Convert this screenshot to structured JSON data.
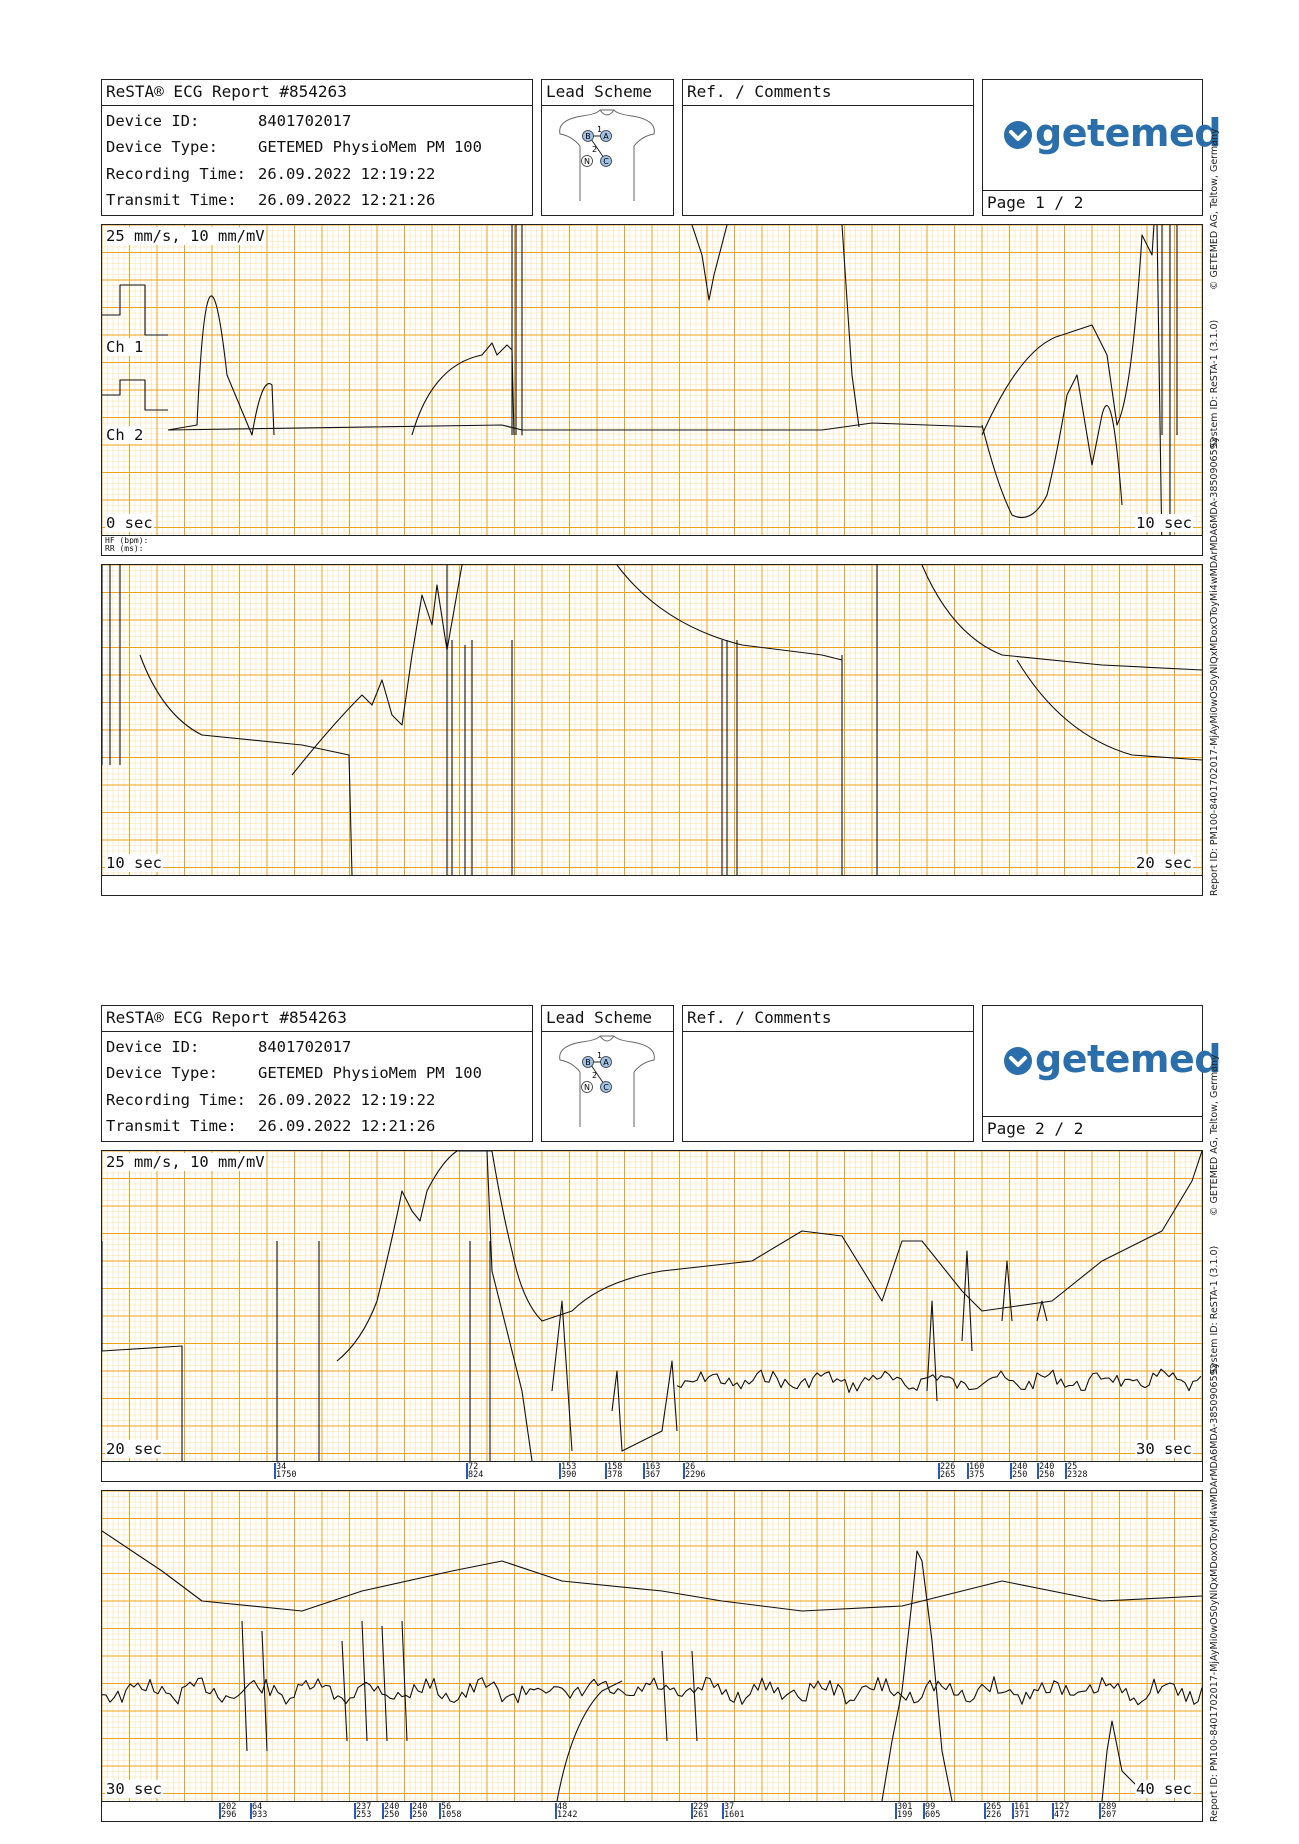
{
  "pages": [
    {
      "report_title": "ReSTA® ECG Report #854263",
      "lead_scheme_title": "Lead Scheme",
      "comments_title": "Ref. / Comments",
      "page_label": "Page 1 / 2",
      "info": [
        {
          "label": "Device ID:",
          "value": "8401702017"
        },
        {
          "label": "Device Type:",
          "value": "GETEMED PhysioMem PM 100"
        },
        {
          "label": "Recording Time:",
          "value": "26.09.2022 12:19:22"
        },
        {
          "label": "Transmit Time:",
          "value": "26.09.2022 12:21:26"
        }
      ],
      "strips": [
        {
          "top_label": "25 mm/s, 10 mm/mV",
          "ch1": "Ch 1",
          "ch2": "Ch 2",
          "start": "0 sec",
          "end": "10 sec",
          "hf": "HF (bpm):",
          "rr": "RR (ms):"
        },
        {
          "start": "10 sec",
          "end": "20 sec"
        }
      ]
    },
    {
      "report_title": "ReSTA® ECG Report #854263",
      "lead_scheme_title": "Lead Scheme",
      "comments_title": "Ref. / Comments",
      "page_label": "Page 2 / 2",
      "info": [
        {
          "label": "Device ID:",
          "value": "8401702017"
        },
        {
          "label": "Device Type:",
          "value": "GETEMED PhysioMem PM 100"
        },
        {
          "label": "Recording Time:",
          "value": "26.09.2022 12:19:22"
        },
        {
          "label": "Transmit Time:",
          "value": "26.09.2022 12:21:26"
        }
      ],
      "strips": [
        {
          "top_label": "25 mm/s, 10 mm/mV",
          "start": "20 sec",
          "end": "30 sec",
          "beats": [
            [
              "34",
              "1750"
            ],
            [
              "72",
              "824"
            ],
            [
              "153",
              "390"
            ],
            [
              "158",
              "378"
            ],
            [
              "163",
              "367"
            ],
            [
              "26",
              "2296"
            ],
            [
              "226",
              "265"
            ],
            [
              "160",
              "375"
            ],
            [
              "240",
              "250"
            ],
            [
              "240",
              "250"
            ],
            [
              "25",
              "2328"
            ]
          ]
        },
        {
          "start": "30 sec",
          "end": "40 sec",
          "beats": [
            [
              "202",
              "296"
            ],
            [
              "64",
              "933"
            ],
            [
              "237",
              "253"
            ],
            [
              "240",
              "250"
            ],
            [
              "240",
              "250"
            ],
            [
              "56",
              "1058"
            ],
            [
              "48",
              "1242"
            ],
            [
              "229",
              "261"
            ],
            [
              "37",
              "1601"
            ],
            [
              "301",
              "199"
            ],
            [
              "99",
              "605"
            ],
            [
              "265",
              "226"
            ],
            [
              "161",
              "371"
            ],
            [
              "127",
              "472"
            ],
            [
              "289",
              "207"
            ]
          ]
        }
      ]
    }
  ],
  "logo": {
    "brand": "getemed",
    "icon": "heart-chevron-icon"
  },
  "lead_labels": {
    "l1": "1",
    "l2": "2",
    "b": "B",
    "a": "A",
    "n": "N",
    "c": "C"
  },
  "side_text": {
    "copyright": "© GETEMED AG, Teltow, Germany",
    "system": "System ID: ReSTA-1 (3.1.0)",
    "report": "Report ID: PM100-8401702017-MjAyMi0wOS0yNlQxMDoxOToyMi4wMDArMDA6MDA-3850906592"
  },
  "colors": {
    "grid_minor": "#f7dfa8",
    "grid_major": "#eda21a",
    "trace": "#111111",
    "brand": "#2a6fab"
  }
}
